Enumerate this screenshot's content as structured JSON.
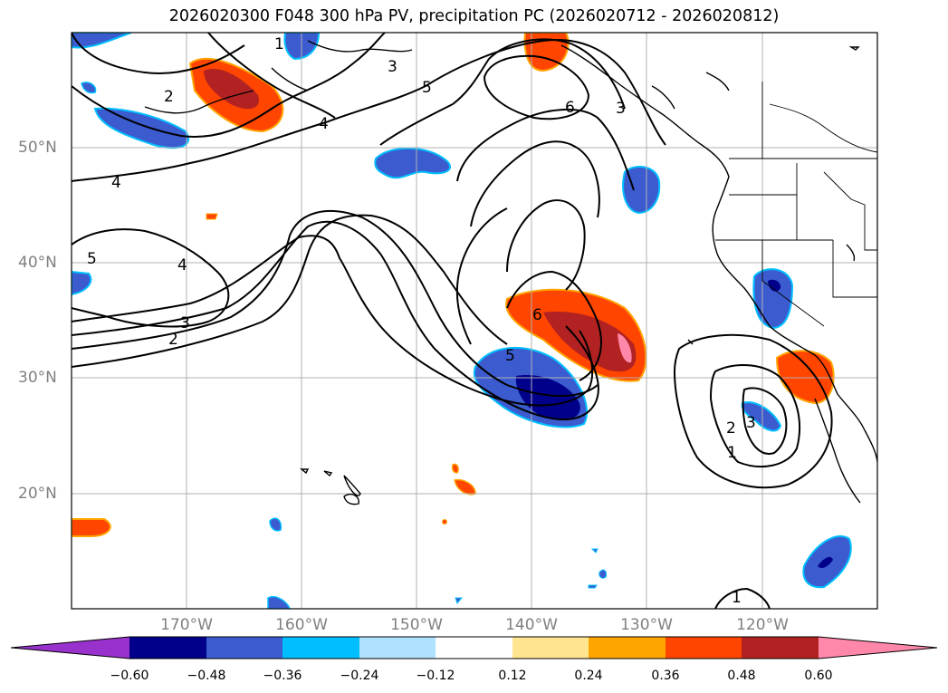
{
  "title": "2026020300 F048 300 hPa PV, precipitation PC (2026020712 - 2026020812)",
  "lat_labels": [
    "50°N",
    "40°N",
    "30°N",
    "20°N"
  ],
  "lon_labels": [
    "170°W",
    "160°W",
    "150°W",
    "140°W",
    "130°W",
    "120°W"
  ],
  "colorbar": {
    "ticks": [
      "−0.60",
      "−0.48",
      "−0.36",
      "−0.24",
      "−0.12",
      "0.12",
      "0.24",
      "0.36",
      "0.48",
      "0.60"
    ],
    "colors": [
      "#9932cc",
      "#00008b",
      "#3b5bcf",
      "#00bfff",
      "#b0e2ff",
      "#ffffff",
      "#ffe58f",
      "#ffa500",
      "#ff4500",
      "#b22222",
      "#ff88aa"
    ]
  },
  "contour_labels": [
    "2",
    "4",
    "5",
    "4",
    "3",
    "2",
    "1",
    "3",
    "5",
    "6",
    "3",
    "4",
    "6",
    "5",
    "2",
    "3",
    "1",
    "1"
  ]
}
